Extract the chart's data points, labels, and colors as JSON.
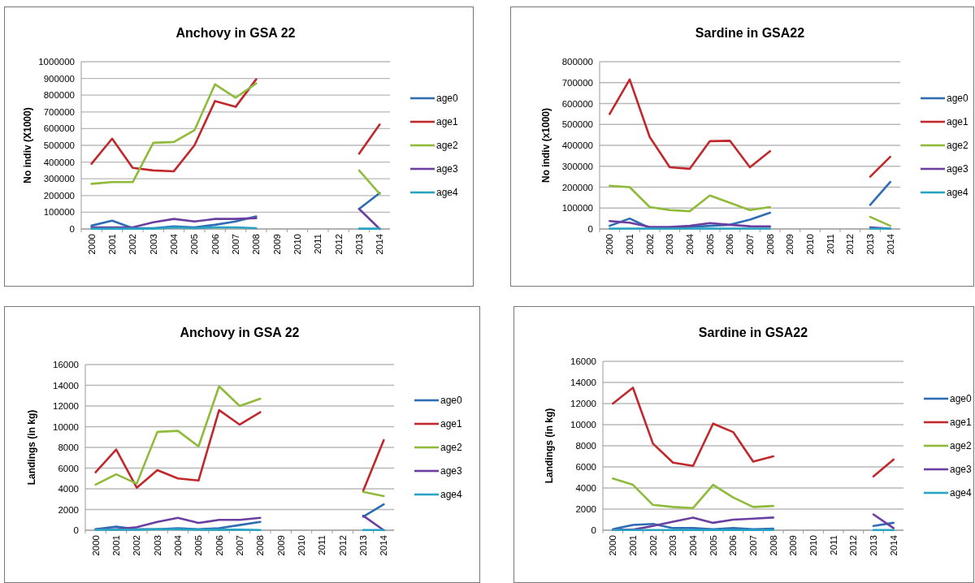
{
  "chart_data": [
    {
      "type": "line",
      "title": "Anchovy in GSA 22",
      "ylabel": "No indiv (X1000)",
      "categories": [
        "2000",
        "2001",
        "2002",
        "2003",
        "2004",
        "2005",
        "2006",
        "2007",
        "2008",
        "2009",
        "2010",
        "2011",
        "2012",
        "2013",
        "2014"
      ],
      "ylim": [
        0,
        1000000
      ],
      "yticks": [
        0,
        100000,
        200000,
        300000,
        400000,
        500000,
        600000,
        700000,
        800000,
        900000,
        1000000
      ],
      "grid": "y",
      "legend": "right",
      "marker": "none",
      "line_style": "solid",
      "series": [
        {
          "name": "age0",
          "color": "#2e6db4",
          "values": [
            20000,
            50000,
            5000,
            5000,
            15000,
            10000,
            25000,
            45000,
            75000,
            null,
            null,
            null,
            null,
            120000,
            215000
          ]
        },
        {
          "name": "age1",
          "color": "#c0282c",
          "values": [
            390000,
            540000,
            365000,
            350000,
            345000,
            500000,
            765000,
            730000,
            895000,
            null,
            null,
            null,
            null,
            450000,
            625000
          ]
        },
        {
          "name": "age2",
          "color": "#8fba3a",
          "values": [
            270000,
            280000,
            280000,
            515000,
            520000,
            590000,
            865000,
            785000,
            870000,
            null,
            null,
            null,
            null,
            350000,
            210000
          ]
        },
        {
          "name": "age3",
          "color": "#6b3fa0",
          "values": [
            10000,
            10000,
            10000,
            40000,
            60000,
            45000,
            60000,
            60000,
            65000,
            null,
            null,
            null,
            null,
            120000,
            0
          ]
        },
        {
          "name": "age4",
          "color": "#27a3c4",
          "values": [
            2000,
            2000,
            2000,
            2000,
            10000,
            5000,
            10000,
            10000,
            5000,
            null,
            null,
            null,
            null,
            2000,
            2000
          ]
        }
      ]
    },
    {
      "type": "line",
      "title": "Sardine in GSA22",
      "ylabel": "No indiv (x1000)",
      "categories": [
        "2000",
        "2001",
        "2002",
        "2003",
        "2004",
        "2005",
        "2006",
        "2007",
        "2008",
        "2009",
        "2010",
        "2011",
        "2012",
        "2013",
        "2014"
      ],
      "ylim": [
        0,
        800000
      ],
      "yticks": [
        0,
        100000,
        200000,
        300000,
        400000,
        500000,
        600000,
        700000,
        800000
      ],
      "grid": "y",
      "legend": "right",
      "marker": "none",
      "line_style": "solid",
      "series": [
        {
          "name": "age0",
          "color": "#2e6db4",
          "values": [
            15000,
            50000,
            5000,
            5000,
            10000,
            15000,
            20000,
            45000,
            78000,
            null,
            null,
            null,
            null,
            115000,
            225000
          ]
        },
        {
          "name": "age1",
          "color": "#c0282c",
          "values": [
            550000,
            715000,
            440000,
            295000,
            288000,
            420000,
            422000,
            295000,
            372000,
            null,
            null,
            null,
            null,
            250000,
            345000
          ]
        },
        {
          "name": "age2",
          "color": "#8fba3a",
          "values": [
            207000,
            200000,
            105000,
            90000,
            85000,
            160000,
            125000,
            90000,
            105000,
            null,
            null,
            null,
            null,
            58000,
            15000
          ]
        },
        {
          "name": "age3",
          "color": "#6b3fa0",
          "values": [
            38000,
            30000,
            10000,
            10000,
            15000,
            28000,
            20000,
            13000,
            12000,
            null,
            null,
            null,
            null,
            8000,
            2000
          ]
        },
        {
          "name": "age4",
          "color": "#27a3c4",
          "values": [
            2000,
            2000,
            2000,
            2000,
            2000,
            2000,
            2000,
            2000,
            2000,
            null,
            null,
            null,
            null,
            2000,
            2000
          ]
        }
      ]
    },
    {
      "type": "line",
      "title": "Anchovy in GSA 22",
      "ylabel": "Landings (in kg)",
      "categories": [
        "2000",
        "2001",
        "2002",
        "2003",
        "2004",
        "2005",
        "2006",
        "2007",
        "2008",
        "2009",
        "2010",
        "2011",
        "2012",
        "2013",
        "2014"
      ],
      "ylim": [
        0,
        16000
      ],
      "yticks": [
        0,
        2000,
        4000,
        6000,
        8000,
        10000,
        12000,
        14000,
        16000
      ],
      "grid": "y",
      "legend": "right",
      "marker": "none",
      "line_style": "solid",
      "series": [
        {
          "name": "age0",
          "color": "#2e6db4",
          "values": [
            100,
            350,
            100,
            100,
            200,
            100,
            200,
            500,
            800,
            null,
            null,
            null,
            null,
            1300,
            2500
          ]
        },
        {
          "name": "age1",
          "color": "#c0282c",
          "values": [
            5600,
            7800,
            4100,
            5800,
            5000,
            4800,
            11600,
            10200,
            11400,
            null,
            null,
            null,
            null,
            3800,
            8700
          ]
        },
        {
          "name": "age2",
          "color": "#8fba3a",
          "values": [
            4400,
            5400,
            4500,
            9500,
            9600,
            8100,
            13900,
            12000,
            12700,
            null,
            null,
            null,
            null,
            3700,
            3300
          ]
        },
        {
          "name": "age3",
          "color": "#6b3fa0",
          "values": [
            100,
            100,
            300,
            800,
            1200,
            700,
            1000,
            1000,
            1200,
            null,
            null,
            null,
            null,
            1400,
            0
          ]
        },
        {
          "name": "age4",
          "color": "#27a3c4",
          "values": [
            50,
            50,
            50,
            100,
            100,
            50,
            50,
            50,
            20,
            null,
            null,
            null,
            null,
            20,
            20
          ]
        }
      ]
    },
    {
      "type": "line",
      "title": "Sardine in GSA22",
      "ylabel": "Landings (in kg)",
      "categories": [
        "2000",
        "2001",
        "2002",
        "2003",
        "2004",
        "2005",
        "2006",
        "2007",
        "2008",
        "2009",
        "2010",
        "2011",
        "2012",
        "2013",
        "2014"
      ],
      "ylim": [
        0,
        16000
      ],
      "yticks": [
        0,
        2000,
        4000,
        6000,
        8000,
        10000,
        12000,
        14000,
        16000
      ],
      "grid": "y",
      "legend": "right",
      "marker": "none",
      "line_style": "solid",
      "series": [
        {
          "name": "age0",
          "color": "#2e6db4",
          "values": [
            100,
            500,
            600,
            200,
            200,
            100,
            200,
            100,
            150,
            null,
            null,
            null,
            null,
            400,
            700
          ]
        },
        {
          "name": "age1",
          "color": "#c0282c",
          "values": [
            12000,
            13500,
            8200,
            6400,
            6100,
            10100,
            9300,
            6500,
            7000,
            null,
            null,
            null,
            null,
            5100,
            6700
          ]
        },
        {
          "name": "age2",
          "color": "#8fba3a",
          "values": [
            4900,
            4300,
            2400,
            2200,
            2100,
            4300,
            3100,
            2200,
            2300,
            null,
            null,
            null,
            null,
            null,
            null
          ]
        },
        {
          "name": "age3",
          "color": "#6b3fa0",
          "values": [
            50,
            50,
            400,
            800,
            1200,
            700,
            1000,
            1100,
            1200,
            null,
            null,
            null,
            null,
            1500,
            200
          ]
        },
        {
          "name": "age4",
          "color": "#27a3c4",
          "values": [
            20,
            20,
            20,
            20,
            20,
            20,
            20,
            20,
            20,
            null,
            null,
            null,
            null,
            20,
            20
          ]
        }
      ]
    }
  ]
}
